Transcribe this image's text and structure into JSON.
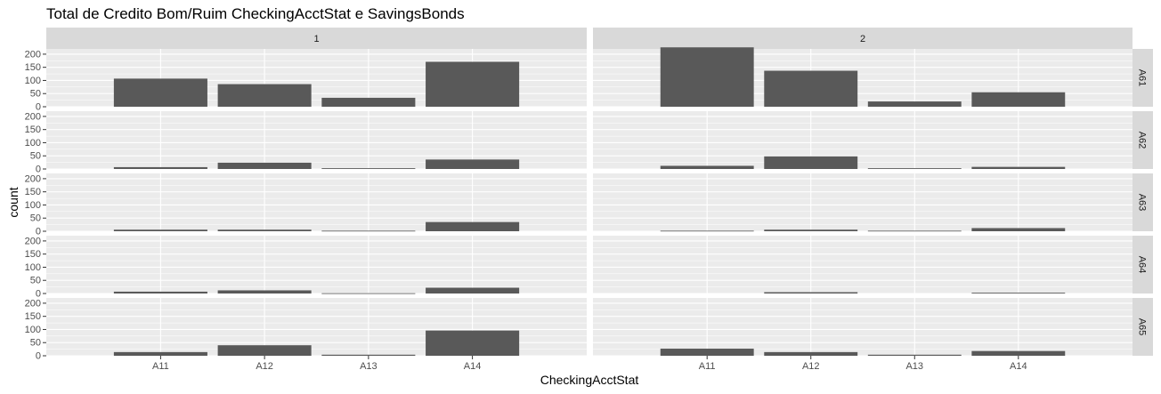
{
  "chart_data": {
    "type": "bar",
    "title": "Total de Credito Bom/Ruim CheckingAcctStat e SavingsBonds",
    "xlabel": "CheckingAcctStat",
    "ylabel": "count",
    "categories": [
      "A11",
      "A12",
      "A13",
      "A14"
    ],
    "ylim": [
      0,
      220
    ],
    "yticks": [
      0,
      50,
      100,
      150,
      200
    ],
    "grid": true,
    "col_facets": [
      "1",
      "2"
    ],
    "row_facets": [
      "A61",
      "A62",
      "A63",
      "A64",
      "A65"
    ],
    "panels": [
      {
        "row": "A61",
        "col": "1",
        "values": [
          107,
          86,
          34,
          171
        ]
      },
      {
        "row": "A61",
        "col": "2",
        "values": [
          226,
          137,
          20,
          55
        ]
      },
      {
        "row": "A62",
        "col": "1",
        "values": [
          7,
          24,
          3,
          36
        ]
      },
      {
        "row": "A62",
        "col": "2",
        "values": [
          12,
          48,
          3,
          8
        ]
      },
      {
        "row": "A63",
        "col": "1",
        "values": [
          6,
          6,
          2,
          35
        ]
      },
      {
        "row": "A63",
        "col": "2",
        "values": [
          2,
          6,
          2,
          12
        ]
      },
      {
        "row": "A64",
        "col": "1",
        "values": [
          7,
          12,
          1,
          22
        ]
      },
      {
        "row": "A64",
        "col": "2",
        "values": [
          0,
          5,
          0,
          3
        ]
      },
      {
        "row": "A65",
        "col": "1",
        "values": [
          14,
          40,
          4,
          96
        ]
      },
      {
        "row": "A65",
        "col": "2",
        "values": [
          27,
          14,
          4,
          18
        ]
      }
    ],
    "colors": {
      "bar": "#595959",
      "panel": "#ebebeb",
      "strip": "#d9d9d9",
      "grid": "#ffffff",
      "text": "#4d4d4d"
    }
  }
}
